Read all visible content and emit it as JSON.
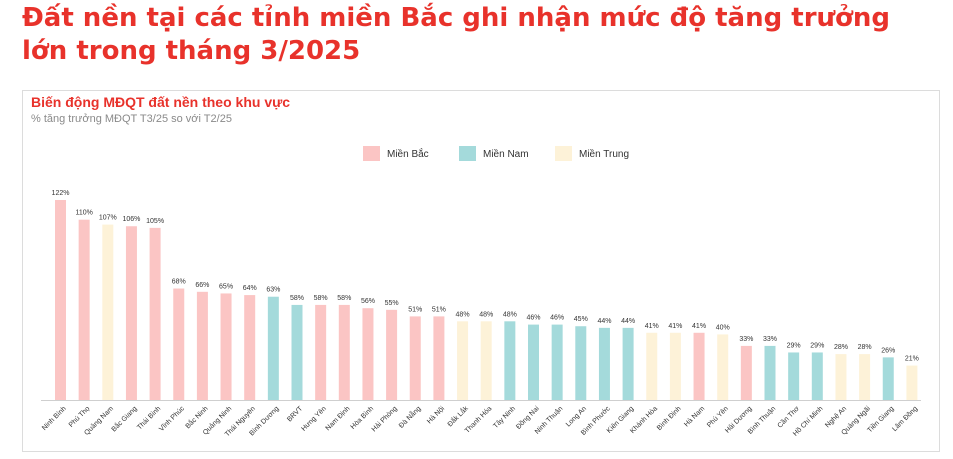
{
  "headline": "Đất nền tại các tỉnh miền Bắc ghi nhận mức độ tăng trưởng lớn trong tháng 3/2025",
  "colors": {
    "Miền Bắc": "#fbc5c4",
    "Miền Nam": "#a4dadb",
    "Miền Trung": "#fdf2d8"
  },
  "chart_data": {
    "type": "bar",
    "title": "Biến động MĐQT đất nền theo khu vực",
    "subtitle": "% tăng trưởng MĐQT T3/25 so với T2/25",
    "unit": "%",
    "legend": [
      "Miền Bắc",
      "Miền Nam",
      "Miền Trung"
    ],
    "legend_position": "top-center",
    "grid": false,
    "ylim": [
      0,
      122
    ],
    "categories": [
      "Ninh Bình",
      "Phú Thọ",
      "Quảng Nam",
      "Bắc Giang",
      "Thái Bình",
      "Vĩnh Phúc",
      "Bắc Ninh",
      "Quảng Ninh",
      "Thái Nguyên",
      "Bình Dương",
      "BRVT",
      "Hưng Yên",
      "Nam Định",
      "Hòa Bình",
      "Hải Phòng",
      "Đà Nẵng",
      "Hà Nội",
      "Đắk Lắk",
      "Thanh Hóa",
      "Tây Ninh",
      "Đồng Nai",
      "Ninh Thuận",
      "Long An",
      "Bình Phước",
      "Kiên Giang",
      "Khánh Hòa",
      "Bình Định",
      "Hà Nam",
      "Phú Yên",
      "Hải Dương",
      "Bình Thuận",
      "Cần Thơ",
      "Hồ Chí Minh",
      "Nghệ An",
      "Quảng Ngãi",
      "Tiền Giang",
      "Lâm Đồng"
    ],
    "values": [
      122,
      110,
      107,
      106,
      105,
      68,
      66,
      65,
      64,
      63,
      58,
      58,
      58,
      56,
      55,
      51,
      51,
      48,
      48,
      48,
      46,
      46,
      45,
      44,
      44,
      41,
      41,
      41,
      40,
      33,
      33,
      29,
      29,
      28,
      28,
      26,
      21
    ],
    "labels": [
      "122%",
      "110%",
      "107%",
      "106%",
      "105%",
      "68%",
      "66%",
      "65%",
      "64%",
      "63%",
      "58%",
      "58%",
      "58%",
      "56%",
      "55%",
      "51%",
      "51%",
      "48%",
      "48%",
      "48%",
      "46%",
      "46%",
      "45%",
      "44%",
      "44%",
      "41%",
      "41%",
      "41%",
      "40%",
      "33%",
      "33%",
      "29%",
      "29%",
      "28%",
      "28%",
      "26%",
      "21%"
    ],
    "regions": [
      "Miền Bắc",
      "Miền Bắc",
      "Miền Trung",
      "Miền Bắc",
      "Miền Bắc",
      "Miền Bắc",
      "Miền Bắc",
      "Miền Bắc",
      "Miền Bắc",
      "Miền Nam",
      "Miền Nam",
      "Miền Bắc",
      "Miền Bắc",
      "Miền Bắc",
      "Miền Bắc",
      "Miền Bắc",
      "Miền Bắc",
      "Miền Trung",
      "Miền Trung",
      "Miền Nam",
      "Miền Nam",
      "Miền Nam",
      "Miền Nam",
      "Miền Nam",
      "Miền Nam",
      "Miền Trung",
      "Miền Trung",
      "Miền Bắc",
      "Miền Trung",
      "Miền Bắc",
      "Miền Nam",
      "Miền Nam",
      "Miền Nam",
      "Miền Trung",
      "Miền Trung",
      "Miền Nam",
      "Miền Trung"
    ]
  }
}
